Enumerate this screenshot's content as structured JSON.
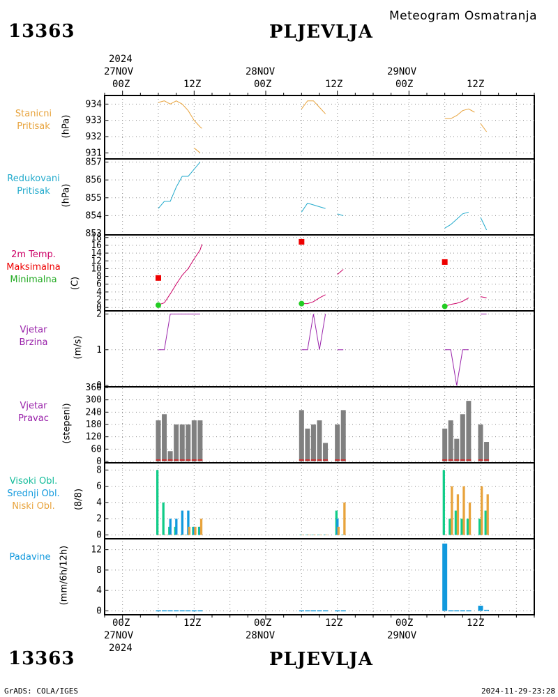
{
  "header": {
    "station_id": "13363",
    "station_name": "PLJEVLJA",
    "subtitle": "Meteogram Osmatranja"
  },
  "footer": {
    "station_id": "13363",
    "station_name": "PLJEVLJA",
    "credit": "GrADS: COLA/IGES",
    "timestamp": "2024-11-29-23:28"
  },
  "time_axis": {
    "top_year": "2024",
    "bottom_year": "2024",
    "days": [
      "27NOV",
      "28NOV",
      "29NOV"
    ],
    "hour_labels": [
      "00Z",
      "12Z",
      "00Z",
      "12Z",
      "00Z",
      "12Z"
    ]
  },
  "panels": {
    "pressure": {
      "label_line1": "Stanicni",
      "label_line2": "Pritisak",
      "unit": "(hPa)"
    },
    "reduced": {
      "label_line1": "Redukovani",
      "label_line2": "Pritisak",
      "unit": "(hPa)"
    },
    "temperature": {
      "label_line1": "2m Temp.",
      "label_line2": "Maksimalna",
      "label_line3": "Minimalna",
      "unit": "(C)"
    },
    "wind_speed": {
      "label_line1": "Vjetar",
      "label_line2": "Brzina",
      "unit": "(m/s)"
    },
    "wind_dir": {
      "label_line1": "Vjetar",
      "label_line2": "Pravac",
      "unit": "(stepeni)"
    },
    "clouds": {
      "label_line1": "Visoki Obl.",
      "label_line2": "Srednji Obl.",
      "label_line3": "Niski Obl.",
      "unit": "(8/8)"
    },
    "precip": {
      "label_line1": "Padavine",
      "unit": "(mm/6h/12h)"
    }
  },
  "colors": {
    "pressure": "#e8a33c",
    "reduced": "#22aacc",
    "temp_line": "#cc0066",
    "temp_max": "#ee0000",
    "temp_min": "#22cc22",
    "wind": "#9922aa",
    "dir_bar": "#808080",
    "dir_base": "#cc3333",
    "cloud_high": "#11cc88",
    "cloud_mid": "#1199dd",
    "cloud_low": "#e8a33c",
    "precip": "#1199dd",
    "grid": "#888888"
  },
  "chart_data": {
    "type": "line",
    "x_unit": "hours since 2024-11-27 00Z",
    "x_range_hours": [
      -3,
      69
    ],
    "pressure": {
      "ylim": [
        930.8,
        934.4
      ],
      "ticks": [
        931,
        932,
        933,
        934
      ],
      "segments": [
        [
          [
            6,
            934.1
          ],
          [
            7,
            934.2
          ],
          [
            8,
            934.0
          ],
          [
            9,
            934.2
          ],
          [
            10,
            934.0
          ],
          [
            11,
            933.6
          ],
          [
            12,
            933.0
          ],
          [
            13,
            932.6
          ],
          [
            13.3,
            932.5
          ]
        ],
        [
          [
            12,
            931.3
          ],
          [
            13,
            931.0
          ]
        ],
        [
          [
            30,
            933.7
          ],
          [
            31,
            934.2
          ],
          [
            32,
            934.2
          ],
          [
            33,
            933.8
          ],
          [
            34,
            933.4
          ]
        ],
        [
          [
            54,
            933.1
          ],
          [
            55,
            933.1
          ],
          [
            56,
            933.3
          ],
          [
            57,
            933.6
          ],
          [
            58,
            933.7
          ],
          [
            59,
            933.5
          ]
        ],
        [
          [
            60,
            932.8
          ],
          [
            61,
            932.3
          ]
        ]
      ]
    },
    "reduced_pressure": {
      "ylim": [
        853.0,
        857.1
      ],
      "ticks": [
        854,
        855,
        856,
        857
      ],
      "tick_labels": [
        "854",
        "855",
        "856",
        "857"
      ],
      "bottom_label": "853",
      "segments": [
        [
          [
            6,
            854.4
          ],
          [
            7,
            854.8
          ],
          [
            8,
            854.8
          ],
          [
            9,
            855.6
          ],
          [
            10,
            856.2
          ],
          [
            11,
            856.2
          ],
          [
            12,
            856.6
          ],
          [
            13,
            857.0
          ]
        ],
        [
          [
            30,
            854.2
          ],
          [
            31,
            854.7
          ],
          [
            32,
            854.6
          ],
          [
            33,
            854.5
          ],
          [
            34,
            854.4
          ]
        ],
        [
          [
            36,
            854.1
          ],
          [
            37,
            854.0
          ]
        ],
        [
          [
            54,
            853.3
          ],
          [
            55,
            853.5
          ],
          [
            56,
            853.8
          ],
          [
            57,
            854.1
          ],
          [
            58,
            854.2
          ]
        ],
        [
          [
            60,
            853.9
          ],
          [
            61,
            853.2
          ]
        ]
      ]
    },
    "temperature": {
      "ylim": [
        -0.5,
        18.5
      ],
      "ticks": [
        0,
        2,
        4,
        6,
        8,
        10,
        12,
        14,
        16,
        18
      ],
      "segments": [
        [
          [
            6,
            0.7
          ],
          [
            7,
            1.2
          ],
          [
            8,
            3.5
          ],
          [
            9,
            6.0
          ],
          [
            10,
            8.3
          ],
          [
            11,
            10.0
          ],
          [
            12,
            12.5
          ],
          [
            13,
            14.8
          ],
          [
            13.3,
            16.3
          ]
        ],
        [
          [
            30,
            1.0
          ],
          [
            31,
            1.0
          ],
          [
            32,
            1.5
          ],
          [
            33,
            2.5
          ],
          [
            34,
            3.3
          ]
        ],
        [
          [
            36,
            8.5
          ],
          [
            37,
            9.8
          ]
        ],
        [
          [
            54,
            0.3
          ],
          [
            55,
            0.8
          ],
          [
            56,
            1.1
          ],
          [
            57,
            1.6
          ],
          [
            58,
            2.5
          ]
        ],
        [
          [
            60,
            2.8
          ],
          [
            61,
            2.5
          ]
        ]
      ],
      "max_points": [
        [
          6,
          7.6
        ],
        [
          30,
          16.9
        ],
        [
          54,
          11.7
        ]
      ],
      "min_points": [
        [
          6,
          0.6
        ],
        [
          30,
          1.0
        ],
        [
          54,
          0.3
        ]
      ]
    },
    "wind_speed": {
      "ylim": [
        0,
        2.05
      ],
      "ticks": [
        0,
        1,
        2
      ],
      "segments": [
        [
          [
            6,
            1
          ],
          [
            7,
            1
          ],
          [
            8,
            2
          ],
          [
            9,
            2
          ],
          [
            10,
            2
          ],
          [
            11,
            2
          ],
          [
            12,
            2
          ],
          [
            13,
            2
          ]
        ],
        [
          [
            30,
            1
          ],
          [
            31,
            1
          ],
          [
            32,
            2
          ],
          [
            33,
            1
          ],
          [
            34,
            2
          ]
        ],
        [
          [
            36,
            1
          ],
          [
            37,
            1
          ]
        ],
        [
          [
            54,
            1
          ],
          [
            55,
            1
          ],
          [
            56,
            0
          ],
          [
            57,
            1
          ],
          [
            58,
            1
          ]
        ],
        [
          [
            60,
            2
          ],
          [
            61,
            2
          ]
        ]
      ]
    },
    "wind_direction": {
      "ylim": [
        0,
        360
      ],
      "ticks": [
        0,
        60,
        120,
        180,
        240,
        300,
        360
      ],
      "bars": [
        [
          6,
          200
        ],
        [
          7,
          230
        ],
        [
          8,
          50
        ],
        [
          9,
          180
        ],
        [
          10,
          180
        ],
        [
          11,
          180
        ],
        [
          12,
          200
        ],
        [
          13,
          200
        ],
        [
          30,
          250
        ],
        [
          31,
          160
        ],
        [
          32,
          180
        ],
        [
          33,
          200
        ],
        [
          34,
          90
        ],
        [
          36,
          180
        ],
        [
          37,
          250
        ],
        [
          54,
          160
        ],
        [
          55,
          200
        ],
        [
          56,
          110
        ],
        [
          57,
          230
        ],
        [
          58,
          295
        ],
        [
          60,
          180
        ],
        [
          61,
          95
        ]
      ]
    },
    "clouds": {
      "ylim": [
        -0.3,
        8.8
      ],
      "ticks": [
        0,
        2,
        4,
        6,
        8
      ],
      "high": [
        [
          6,
          8
        ],
        [
          7,
          4
        ],
        [
          8,
          1
        ],
        [
          9,
          1
        ],
        [
          10,
          0
        ],
        [
          11,
          0
        ],
        [
          12,
          1
        ],
        [
          13,
          1
        ],
        [
          30,
          0
        ],
        [
          31,
          0
        ],
        [
          32,
          0
        ],
        [
          33,
          0
        ],
        [
          34,
          0
        ],
        [
          36,
          3
        ],
        [
          37,
          0
        ],
        [
          54,
          8
        ],
        [
          55,
          2
        ],
        [
          56,
          3
        ],
        [
          57,
          2
        ],
        [
          58,
          2
        ],
        [
          60,
          2
        ],
        [
          61,
          3
        ]
      ],
      "mid": [
        [
          6,
          0
        ],
        [
          7,
          0
        ],
        [
          8,
          2
        ],
        [
          9,
          2
        ],
        [
          10,
          3
        ],
        [
          11,
          3
        ],
        [
          12,
          1
        ],
        [
          13,
          1
        ],
        [
          30,
          0
        ],
        [
          31,
          0
        ],
        [
          32,
          0
        ],
        [
          33,
          0
        ],
        [
          34,
          0
        ],
        [
          36,
          2
        ],
        [
          37,
          0
        ],
        [
          54,
          0
        ],
        [
          55,
          0
        ],
        [
          56,
          0
        ],
        [
          57,
          0
        ],
        [
          58,
          0
        ],
        [
          60,
          0
        ],
        [
          61,
          0
        ]
      ],
      "low": [
        [
          6,
          0
        ],
        [
          7,
          0
        ],
        [
          8,
          0
        ],
        [
          9,
          0
        ],
        [
          10,
          0
        ],
        [
          11,
          1
        ],
        [
          12,
          1
        ],
        [
          13,
          2
        ],
        [
          30,
          0
        ],
        [
          31,
          0
        ],
        [
          32,
          0
        ],
        [
          33,
          0
        ],
        [
          34,
          0
        ],
        [
          36,
          1
        ],
        [
          37,
          4
        ],
        [
          54,
          0
        ],
        [
          55,
          6
        ],
        [
          56,
          5
        ],
        [
          57,
          6
        ],
        [
          58,
          4
        ],
        [
          60,
          6
        ],
        [
          61,
          5
        ]
      ]
    },
    "precipitation": {
      "ylim": [
        -0.5,
        14
      ],
      "ticks": [
        0,
        4,
        8,
        12
      ],
      "bars": [
        [
          6,
          0.1
        ],
        [
          7,
          0.1
        ],
        [
          8,
          0.1
        ],
        [
          9,
          0.1
        ],
        [
          10,
          0.1
        ],
        [
          11,
          0.1
        ],
        [
          12,
          0.1
        ],
        [
          13,
          0.1
        ],
        [
          30,
          0.1
        ],
        [
          31,
          0.1
        ],
        [
          32,
          0.1
        ],
        [
          33,
          0.1
        ],
        [
          34,
          0.1
        ],
        [
          36,
          0.1
        ],
        [
          37,
          0.1
        ],
        [
          54,
          13.2
        ],
        [
          55,
          0.1
        ],
        [
          56,
          0.1
        ],
        [
          57,
          0.1
        ],
        [
          58,
          0.1
        ],
        [
          60,
          1.0
        ],
        [
          61,
          0.2
        ]
      ]
    }
  }
}
